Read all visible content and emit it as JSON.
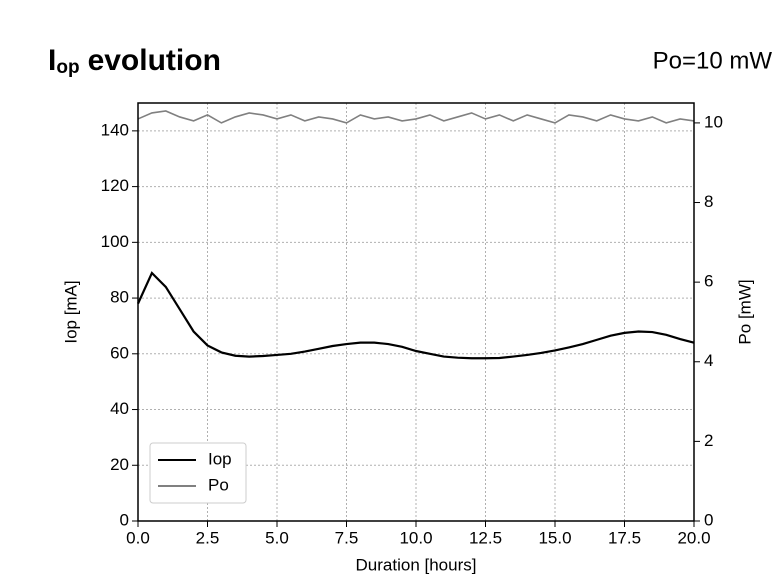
{
  "chart_data": {
    "type": "line",
    "title": {
      "main": "I",
      "sub": "op",
      "rest": "evolution"
    },
    "subtitle": "Po=10 mW",
    "xlabel": "Duration [hours]",
    "ylabel": "Iop [mA]",
    "y2label": "Po [mW]",
    "x": [
      0,
      0.5,
      1,
      1.5,
      2,
      2.5,
      3,
      3.5,
      4,
      4.5,
      5,
      5.5,
      6,
      6.5,
      7,
      7.5,
      8,
      8.5,
      9,
      9.5,
      10,
      10.5,
      11,
      11.5,
      12,
      12.5,
      13,
      13.5,
      14,
      14.5,
      15,
      15.5,
      16,
      16.5,
      17,
      17.5,
      18,
      18.5,
      19,
      19.5,
      20
    ],
    "series": [
      {
        "name": "Iop",
        "color": "#000000",
        "values": [
          78,
          89,
          84,
          76,
          68,
          63,
          60.5,
          59.3,
          59,
          59.2,
          59.6,
          60,
          60.8,
          61.8,
          62.8,
          63.5,
          64,
          64,
          63.5,
          62.5,
          61,
          60,
          59,
          58.6,
          58.4,
          58.4,
          58.5,
          59,
          59.6,
          60.3,
          61.2,
          62.3,
          63.5,
          65,
          66.5,
          67.5,
          68,
          67.8,
          66.8,
          65.3,
          64
        ]
      },
      {
        "name": "Po",
        "color": "#808080",
        "axis": "y2",
        "values": [
          10.1,
          10.25,
          10.3,
          10.15,
          10.05,
          10.2,
          10.0,
          10.15,
          10.25,
          10.2,
          10.1,
          10.2,
          10.05,
          10.15,
          10.1,
          10.0,
          10.2,
          10.1,
          10.15,
          10.05,
          10.1,
          10.2,
          10.05,
          10.15,
          10.25,
          10.1,
          10.2,
          10.05,
          10.2,
          10.1,
          10.0,
          10.2,
          10.15,
          10.05,
          10.2,
          10.1,
          10.05,
          10.15,
          10.0,
          10.1,
          10.05
        ]
      }
    ],
    "xlim": [
      0,
      20
    ],
    "xticks": [
      {
        "value": 0,
        "label": "0.0"
      },
      2.5,
      {
        "value": 5,
        "label": "5.0"
      },
      7.5,
      {
        "value": 10,
        "label": "10.0"
      },
      12.5,
      {
        "value": 15,
        "label": "15.0"
      },
      17.5,
      {
        "value": 20,
        "label": "20.0"
      }
    ],
    "ylim": [
      0,
      150
    ],
    "yticks": [
      0,
      20,
      40,
      60,
      80,
      100,
      120,
      140
    ],
    "y2lim": [
      0,
      10.5
    ],
    "y2ticks": [
      0,
      2,
      4,
      6,
      8,
      10
    ],
    "grid": true,
    "legend": "lower left"
  }
}
